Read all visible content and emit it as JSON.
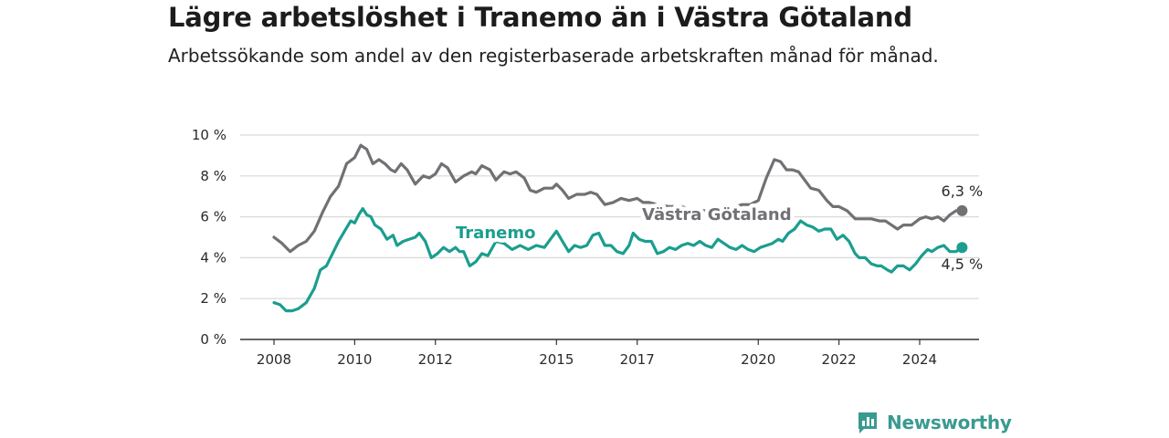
{
  "title": "Lägre arbetslöshet i Tranemo än i Västra Götaland",
  "subtitle": "Arbetssökande som andel av den registerbaserade arbetskraften månad för månad.",
  "brand": "Newsworthy",
  "colors": {
    "tranemo": "#1a9e8f",
    "vastra_gotaland": "#717175",
    "grid": "#d9d9d9",
    "brand": "#3a9a90"
  },
  "chart_data": {
    "type": "line",
    "title": "Lägre arbetslöshet i Tranemo än i Västra Götaland",
    "subtitle": "Arbetssökande som andel av den registerbaserade arbetskraften månad för månad.",
    "xlabel": "",
    "ylabel": "",
    "ylim": [
      0,
      10
    ],
    "y_ticks": [
      0,
      2,
      4,
      6,
      8,
      10
    ],
    "y_tick_labels": [
      "0 %",
      "2 %",
      "4 %",
      "6 %",
      "8 %",
      "10 %"
    ],
    "x_ticks": [
      2008,
      2010,
      2012,
      2015,
      2017,
      2020,
      2022,
      2024
    ],
    "x_tick_labels": [
      "2008",
      "2010",
      "2012",
      "2015",
      "2017",
      "2020",
      "2022",
      "2024"
    ],
    "xlim": [
      2007.6,
      2025.6
    ],
    "grid": true,
    "legend": "inline labels",
    "series": [
      {
        "name": "Västra Götaland",
        "color": "#717175",
        "end_label": "6,3 %",
        "points": [
          [
            2008.0,
            5.0
          ],
          [
            2008.2,
            4.7
          ],
          [
            2008.4,
            4.3
          ],
          [
            2008.6,
            4.6
          ],
          [
            2008.8,
            4.8
          ],
          [
            2009.0,
            5.3
          ],
          [
            2009.2,
            6.2
          ],
          [
            2009.4,
            7.0
          ],
          [
            2009.6,
            7.5
          ],
          [
            2009.8,
            8.6
          ],
          [
            2010.0,
            8.9
          ],
          [
            2010.15,
            9.5
          ],
          [
            2010.3,
            9.3
          ],
          [
            2010.45,
            8.6
          ],
          [
            2010.6,
            8.8
          ],
          [
            2010.75,
            8.6
          ],
          [
            2010.9,
            8.3
          ],
          [
            2011.0,
            8.2
          ],
          [
            2011.15,
            8.6
          ],
          [
            2011.3,
            8.3
          ],
          [
            2011.5,
            7.6
          ],
          [
            2011.7,
            8.0
          ],
          [
            2011.85,
            7.9
          ],
          [
            2012.0,
            8.1
          ],
          [
            2012.15,
            8.6
          ],
          [
            2012.3,
            8.4
          ],
          [
            2012.5,
            7.7
          ],
          [
            2012.7,
            8.0
          ],
          [
            2012.9,
            8.2
          ],
          [
            2013.0,
            8.1
          ],
          [
            2013.15,
            8.5
          ],
          [
            2013.35,
            8.3
          ],
          [
            2013.5,
            7.8
          ],
          [
            2013.7,
            8.2
          ],
          [
            2013.85,
            8.1
          ],
          [
            2014.0,
            8.2
          ],
          [
            2014.2,
            7.9
          ],
          [
            2014.35,
            7.3
          ],
          [
            2014.5,
            7.2
          ],
          [
            2014.7,
            7.4
          ],
          [
            2014.9,
            7.4
          ],
          [
            2015.0,
            7.6
          ],
          [
            2015.15,
            7.3
          ],
          [
            2015.3,
            6.9
          ],
          [
            2015.5,
            7.1
          ],
          [
            2015.7,
            7.1
          ],
          [
            2015.85,
            7.2
          ],
          [
            2016.0,
            7.1
          ],
          [
            2016.2,
            6.6
          ],
          [
            2016.4,
            6.7
          ],
          [
            2016.6,
            6.9
          ],
          [
            2016.8,
            6.8
          ],
          [
            2017.0,
            6.9
          ],
          [
            2017.15,
            6.7
          ],
          [
            2017.3,
            6.7
          ],
          [
            2017.5,
            6.6
          ],
          [
            2017.8,
            6.5
          ],
          [
            2018.1,
            6.5
          ],
          [
            2018.4,
            6.3
          ],
          [
            2018.7,
            6.3
          ],
          [
            2019.0,
            6.3
          ],
          [
            2019.3,
            6.4
          ],
          [
            2019.6,
            6.6
          ],
          [
            2019.8,
            6.6
          ],
          [
            2020.0,
            6.8
          ],
          [
            2020.2,
            7.9
          ],
          [
            2020.4,
            8.8
          ],
          [
            2020.55,
            8.7
          ],
          [
            2020.7,
            8.3
          ],
          [
            2020.85,
            8.3
          ],
          [
            2021.0,
            8.2
          ],
          [
            2021.15,
            7.8
          ],
          [
            2021.3,
            7.4
          ],
          [
            2021.5,
            7.3
          ],
          [
            2021.7,
            6.8
          ],
          [
            2021.85,
            6.5
          ],
          [
            2022.0,
            6.5
          ],
          [
            2022.2,
            6.3
          ],
          [
            2022.4,
            5.9
          ],
          [
            2022.6,
            5.9
          ],
          [
            2022.8,
            5.9
          ],
          [
            2023.0,
            5.8
          ],
          [
            2023.15,
            5.8
          ],
          [
            2023.3,
            5.6
          ],
          [
            2023.45,
            5.4
          ],
          [
            2023.6,
            5.6
          ],
          [
            2023.8,
            5.6
          ],
          [
            2024.0,
            5.9
          ],
          [
            2024.15,
            6.0
          ],
          [
            2024.3,
            5.9
          ],
          [
            2024.45,
            6.0
          ],
          [
            2024.6,
            5.8
          ],
          [
            2024.75,
            6.1
          ],
          [
            2024.9,
            6.3
          ],
          [
            2025.05,
            6.3
          ]
        ]
      },
      {
        "name": "Tranemo",
        "color": "#1a9e8f",
        "end_label": "4,5 %",
        "points": [
          [
            2008.0,
            1.8
          ],
          [
            2008.15,
            1.7
          ],
          [
            2008.3,
            1.4
          ],
          [
            2008.45,
            1.4
          ],
          [
            2008.6,
            1.5
          ],
          [
            2008.8,
            1.8
          ],
          [
            2009.0,
            2.5
          ],
          [
            2009.15,
            3.4
          ],
          [
            2009.3,
            3.6
          ],
          [
            2009.45,
            4.2
          ],
          [
            2009.6,
            4.8
          ],
          [
            2009.75,
            5.3
          ],
          [
            2009.9,
            5.8
          ],
          [
            2010.0,
            5.7
          ],
          [
            2010.1,
            6.1
          ],
          [
            2010.2,
            6.4
          ],
          [
            2010.3,
            6.1
          ],
          [
            2010.4,
            6.0
          ],
          [
            2010.5,
            5.6
          ],
          [
            2010.65,
            5.4
          ],
          [
            2010.8,
            4.9
          ],
          [
            2010.95,
            5.1
          ],
          [
            2011.05,
            4.6
          ],
          [
            2011.2,
            4.8
          ],
          [
            2011.35,
            4.9
          ],
          [
            2011.5,
            5.0
          ],
          [
            2011.6,
            5.2
          ],
          [
            2011.75,
            4.8
          ],
          [
            2011.9,
            4.0
          ],
          [
            2012.05,
            4.2
          ],
          [
            2012.2,
            4.5
          ],
          [
            2012.35,
            4.3
          ],
          [
            2012.5,
            4.5
          ],
          [
            2012.6,
            4.3
          ],
          [
            2012.7,
            4.3
          ],
          [
            2012.85,
            3.6
          ],
          [
            2013.0,
            3.8
          ],
          [
            2013.15,
            4.2
          ],
          [
            2013.3,
            4.1
          ],
          [
            2013.5,
            4.8
          ],
          [
            2013.7,
            4.7
          ],
          [
            2013.9,
            4.4
          ],
          [
            2014.1,
            4.6
          ],
          [
            2014.3,
            4.4
          ],
          [
            2014.5,
            4.6
          ],
          [
            2014.7,
            4.5
          ],
          [
            2014.85,
            4.9
          ],
          [
            2015.0,
            5.3
          ],
          [
            2015.15,
            4.8
          ],
          [
            2015.3,
            4.3
          ],
          [
            2015.45,
            4.6
          ],
          [
            2015.6,
            4.5
          ],
          [
            2015.75,
            4.6
          ],
          [
            2015.9,
            5.1
          ],
          [
            2016.05,
            5.2
          ],
          [
            2016.2,
            4.6
          ],
          [
            2016.35,
            4.6
          ],
          [
            2016.5,
            4.3
          ],
          [
            2016.65,
            4.2
          ],
          [
            2016.8,
            4.6
          ],
          [
            2016.9,
            5.2
          ],
          [
            2017.05,
            4.9
          ],
          [
            2017.2,
            4.8
          ],
          [
            2017.35,
            4.8
          ],
          [
            2017.5,
            4.2
          ],
          [
            2017.65,
            4.3
          ],
          [
            2017.8,
            4.5
          ],
          [
            2017.95,
            4.4
          ],
          [
            2018.1,
            4.6
          ],
          [
            2018.25,
            4.7
          ],
          [
            2018.4,
            4.6
          ],
          [
            2018.55,
            4.8
          ],
          [
            2018.7,
            4.6
          ],
          [
            2018.85,
            4.5
          ],
          [
            2019.0,
            4.9
          ],
          [
            2019.15,
            4.7
          ],
          [
            2019.3,
            4.5
          ],
          [
            2019.45,
            4.4
          ],
          [
            2019.6,
            4.6
          ],
          [
            2019.75,
            4.4
          ],
          [
            2019.9,
            4.3
          ],
          [
            2020.05,
            4.5
          ],
          [
            2020.2,
            4.6
          ],
          [
            2020.35,
            4.7
          ],
          [
            2020.5,
            4.9
          ],
          [
            2020.6,
            4.8
          ],
          [
            2020.75,
            5.2
          ],
          [
            2020.9,
            5.4
          ],
          [
            2021.05,
            5.8
          ],
          [
            2021.2,
            5.6
          ],
          [
            2021.35,
            5.5
          ],
          [
            2021.5,
            5.3
          ],
          [
            2021.65,
            5.4
          ],
          [
            2021.8,
            5.4
          ],
          [
            2021.95,
            4.9
          ],
          [
            2022.1,
            5.1
          ],
          [
            2022.25,
            4.8
          ],
          [
            2022.4,
            4.2
          ],
          [
            2022.5,
            4.0
          ],
          [
            2022.65,
            4.0
          ],
          [
            2022.8,
            3.7
          ],
          [
            2022.95,
            3.6
          ],
          [
            2023.05,
            3.6
          ],
          [
            2023.2,
            3.4
          ],
          [
            2023.3,
            3.3
          ],
          [
            2023.45,
            3.6
          ],
          [
            2023.6,
            3.6
          ],
          [
            2023.75,
            3.4
          ],
          [
            2023.9,
            3.7
          ],
          [
            2024.05,
            4.1
          ],
          [
            2024.2,
            4.4
          ],
          [
            2024.3,
            4.3
          ],
          [
            2024.45,
            4.5
          ],
          [
            2024.6,
            4.6
          ],
          [
            2024.75,
            4.3
          ],
          [
            2024.9,
            4.3
          ],
          [
            2025.05,
            4.5
          ]
        ]
      }
    ]
  }
}
